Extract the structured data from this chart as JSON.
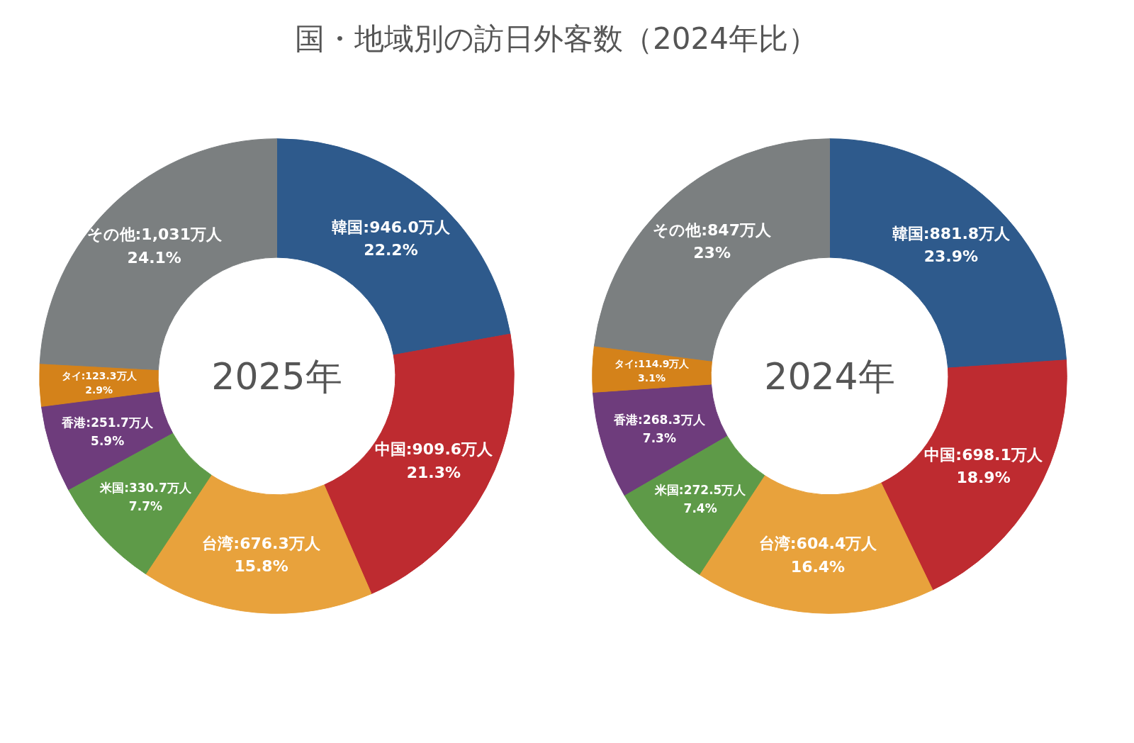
{
  "chart_data": [
    {
      "type": "donut",
      "title": "国・地域別の訪日外客数（2024年比）",
      "annotations": [
        "2025年"
      ],
      "categories": [
        "韓国",
        "中国",
        "台湾",
        "米国",
        "香港",
        "タイ",
        "その他"
      ],
      "values": [
        946.0,
        909.6,
        676.3,
        330.7,
        251.7,
        123.3,
        1031
      ],
      "value_labels": [
        "946.0万人\n22.2%",
        "909.6万人\n21.3%",
        "676.3万人\n15.8%",
        "330.7万人\n7.7%",
        "251.7万人\n5.9%",
        "123.3万人\n2.9%",
        "1,031万人\n24.1%"
      ],
      "colors": [
        "#2e5a8c",
        "#be2b30",
        "#e8a23c",
        "#5e9a48",
        "#6e3c7c",
        "#d4821a",
        "#7b7f80"
      ]
    },
    {
      "type": "donut",
      "annotations": [
        "2024年"
      ],
      "categories": [
        "韓国",
        "中国",
        "台湾",
        "米国",
        "香港",
        "タイ",
        "その他"
      ],
      "values": [
        881.8,
        698.1,
        604.4,
        272.5,
        268.3,
        114.9,
        847
      ],
      "value_labels": [
        "881.8万人\n23.9%",
        "698.1万人\n18.9%",
        "604.4万人\n16.4%",
        "272.5万人\n7.4%",
        "268.3万人\n7.3%",
        "114.9万人\n3.1%",
        "847万人\n23%"
      ],
      "colors": [
        "#2e5a8c",
        "#be2b30",
        "#e8a23c",
        "#5e9a48",
        "#6e3c7c",
        "#d4821a",
        "#7b7f80"
      ]
    }
  ]
}
